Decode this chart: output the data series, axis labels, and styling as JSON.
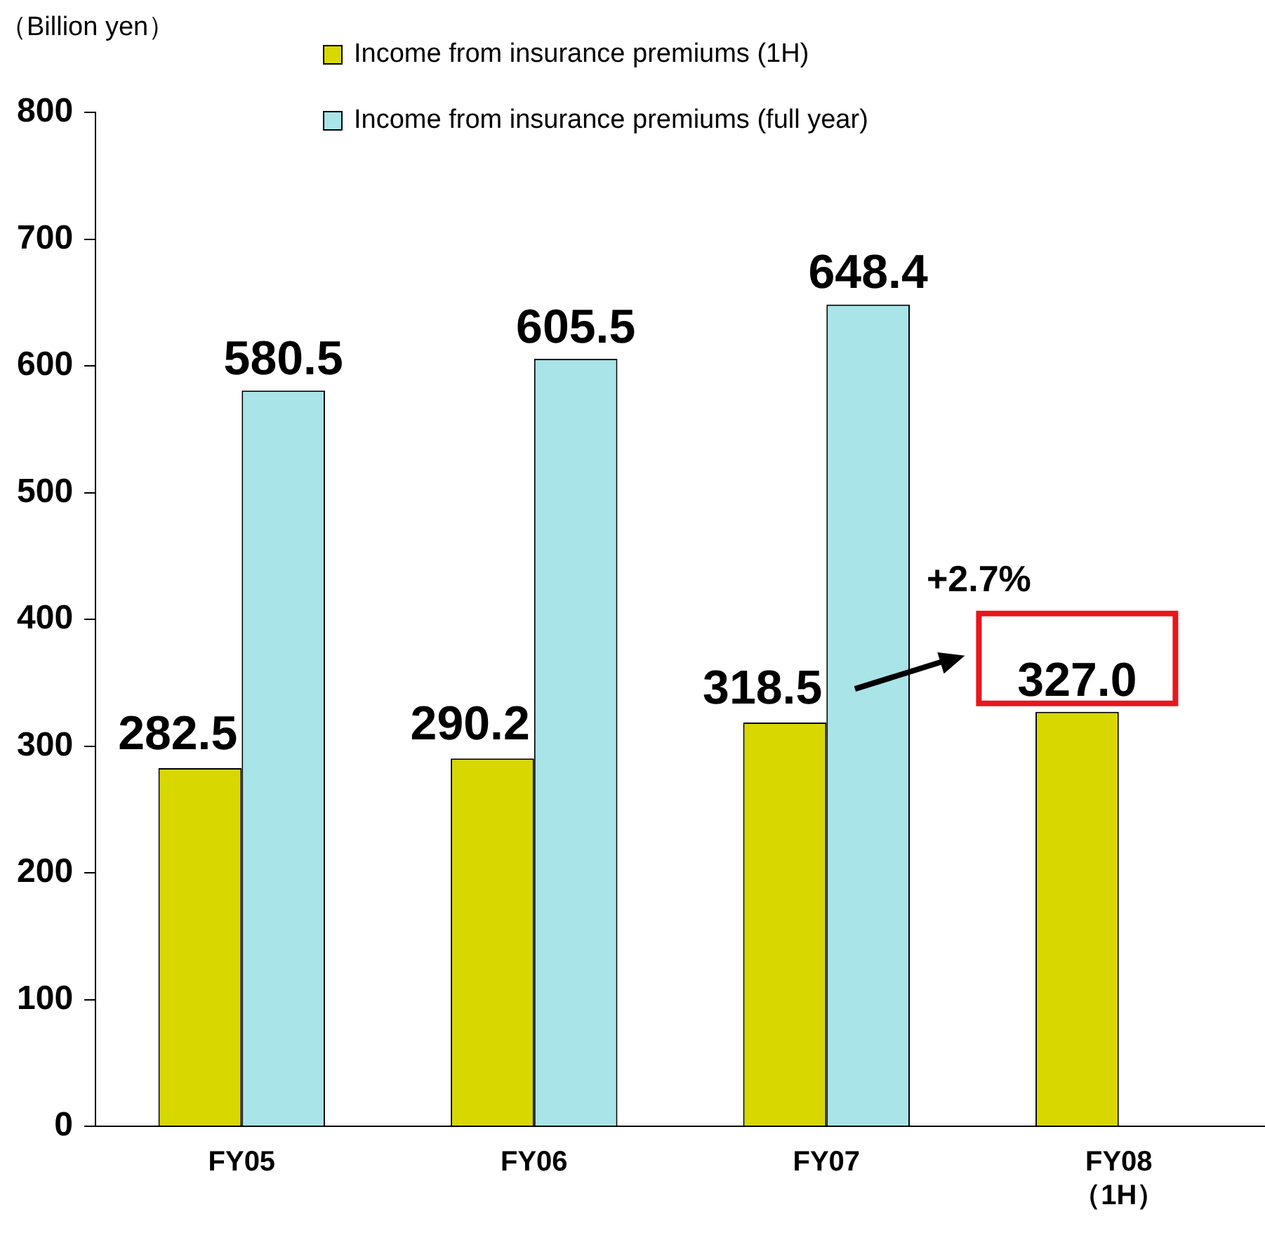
{
  "chart_data": {
    "type": "bar",
    "ylabel": "（Billion yen）",
    "categories": [
      "FY05",
      "FY06",
      "FY07",
      "FY08\n（1H）"
    ],
    "series": [
      {
        "name": "Income from insurance premiums (1H)",
        "color": "#d8d800",
        "values": [
          282.5,
          290.2,
          318.5,
          327.0
        ],
        "value_labels": [
          "282.5",
          "290.2",
          "318.5",
          "327.0"
        ]
      },
      {
        "name": "Income from insurance premiums (full year)",
        "color": "#a8e4e8",
        "values": [
          580.5,
          605.5,
          648.4,
          null
        ],
        "value_labels": [
          "580.5",
          "605.5",
          "648.4",
          null
        ]
      }
    ],
    "ylim": [
      0,
      800
    ],
    "yticks": [
      0,
      100,
      200,
      300,
      400,
      500,
      600,
      700,
      800
    ],
    "grid": false,
    "legend": "top",
    "annotations": [
      "+2.7%"
    ]
  }
}
